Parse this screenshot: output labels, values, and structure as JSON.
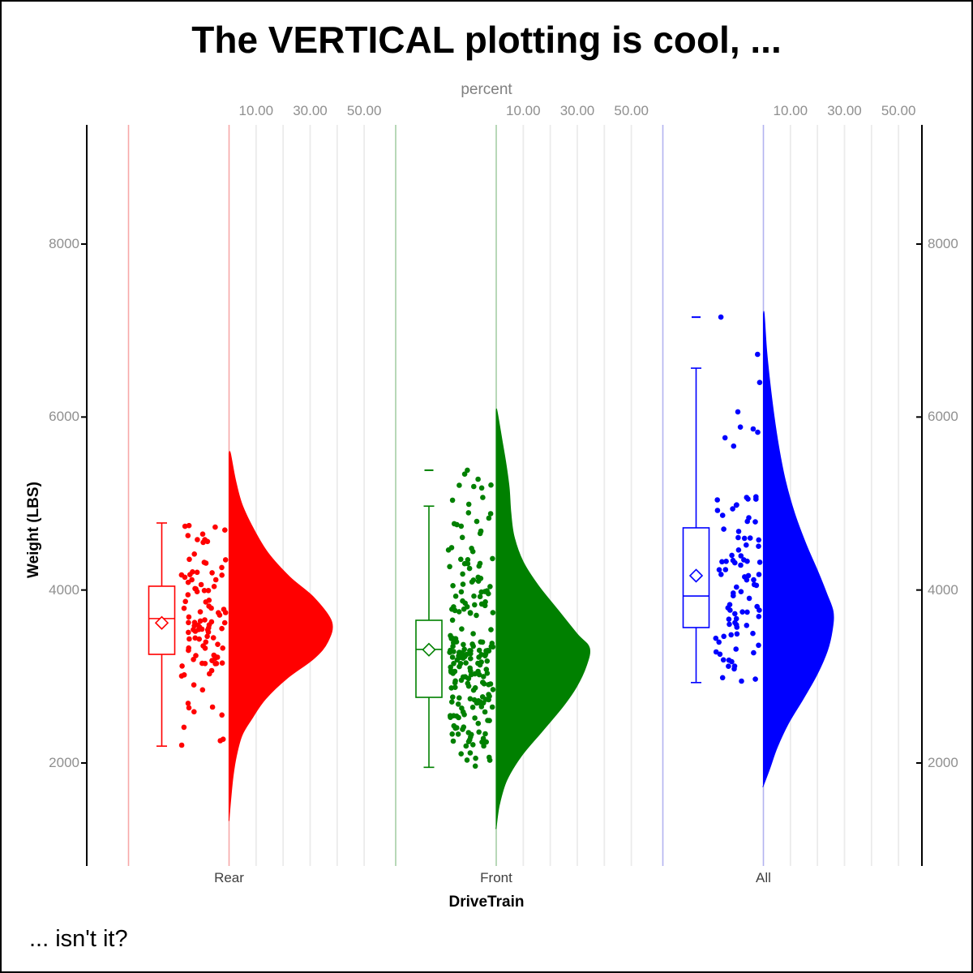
{
  "title": "The VERTICAL plotting is cool, ...",
  "footnote": "... isn't it?",
  "axes": {
    "top": {
      "label": "percent",
      "tick_labels": [
        "10.00",
        "30.00",
        "50.00"
      ],
      "tick_percents": [
        10,
        30,
        50
      ],
      "grid_percents": [
        10,
        20,
        30,
        40,
        50
      ]
    },
    "left": {
      "label": "Weight (LBS)",
      "tick_labels": [
        "2000",
        "4000",
        "6000",
        "8000"
      ],
      "tick_values": [
        2000,
        4000,
        6000,
        8000
      ]
    },
    "right": {
      "tick_labels": [
        "2000",
        "4000",
        "6000",
        "8000"
      ],
      "tick_values": [
        2000,
        4000,
        6000,
        8000
      ]
    },
    "bottom": {
      "label": "DriveTrain",
      "categories": [
        "Rear",
        "Front",
        "All"
      ]
    }
  },
  "chart_data": {
    "type": "raincloud",
    "subtype": "vertical half-violin (density in percent) + box plot with mean diamond + jittered points",
    "title": "The VERTICAL plotting is cool, ...",
    "xlabel": "DriveTrain",
    "x2label": "percent",
    "ylabel": "Weight (LBS)",
    "ylim": [
      810,
      9380
    ],
    "y_ticks": [
      2000,
      4000,
      6000,
      8000
    ],
    "percent_tick_values": [
      10,
      30,
      50
    ],
    "grid": "vertical percent gridlines per category",
    "categories": [
      "Rear",
      "Front",
      "All"
    ],
    "groups": [
      {
        "name": "Rear",
        "color": "#FF0000",
        "pale_line_color": "#F7A8A8",
        "n_points": 105,
        "point_range": [
          2195,
          4790
        ],
        "box": {
          "whisker_low": 2195,
          "q1": 3256,
          "median": 3670,
          "q3": 4044,
          "whisker_high": 4775,
          "mean": 3620,
          "outliers": []
        },
        "extra_points": [
          2206,
          2413
        ],
        "density_value_percent": [
          [
            5580,
            0.5
          ],
          [
            5270,
            2.4
          ],
          [
            4990,
            4.8
          ],
          [
            4710,
            9.0
          ],
          [
            4430,
            14.4
          ],
          [
            4150,
            22.5
          ],
          [
            3910,
            31.5
          ],
          [
            3630,
            38.0
          ],
          [
            3400,
            36.5
          ],
          [
            3210,
            31.5
          ],
          [
            2980,
            21.5
          ],
          [
            2740,
            13.5
          ],
          [
            2510,
            8.4
          ],
          [
            2320,
            4.8
          ],
          [
            2080,
            2.7
          ],
          [
            1850,
            1.5
          ],
          [
            1570,
            0.6
          ],
          [
            1350,
            0
          ]
        ]
      },
      {
        "name": "Front",
        "color": "#008000",
        "pale_line_color": "#A6CFA6",
        "n_points": 215,
        "point_range": [
          1950,
          5400
        ],
        "box": {
          "whisker_low": 1950,
          "q1": 2759,
          "median": 3313,
          "q3": 3650,
          "whisker_high": 4970,
          "mean": 3310,
          "outliers": [
            5385
          ]
        },
        "extra_points": [
          5385,
          5340,
          5180
        ],
        "density_value_percent": [
          [
            6070,
            0.3
          ],
          [
            5740,
            2.1
          ],
          [
            5460,
            3.6
          ],
          [
            5180,
            4.8
          ],
          [
            4900,
            5.4
          ],
          [
            4620,
            6.6
          ],
          [
            4330,
            9.9
          ],
          [
            4050,
            15.6
          ],
          [
            3770,
            22.8
          ],
          [
            3490,
            30.0
          ],
          [
            3330,
            34.5
          ],
          [
            3120,
            33.3
          ],
          [
            2880,
            29.7
          ],
          [
            2650,
            24.6
          ],
          [
            2370,
            17.1
          ],
          [
            2080,
            9.3
          ],
          [
            1800,
            3.9
          ],
          [
            1520,
            1.2
          ],
          [
            1260,
            0
          ]
        ]
      },
      {
        "name": "All",
        "color": "#0000FF",
        "pale_line_color": "#B3B3F0",
        "n_points": 92,
        "point_range": [
          2830,
          7160
        ],
        "box": {
          "whisker_low": 2930,
          "q1": 3566,
          "median": 3931,
          "q3": 4719,
          "whisker_high": 6565,
          "mean": 4166,
          "outliers": [
            7155
          ]
        },
        "extra_points": [
          7155,
          6400
        ],
        "density_value_percent": [
          [
            7190,
            0.3
          ],
          [
            6770,
            1.2
          ],
          [
            6400,
            2.4
          ],
          [
            6020,
            3.9
          ],
          [
            5650,
            5.7
          ],
          [
            5270,
            8.1
          ],
          [
            4900,
            11.4
          ],
          [
            4520,
            15.9
          ],
          [
            4240,
            19.8
          ],
          [
            3960,
            23.4
          ],
          [
            3750,
            25.8
          ],
          [
            3540,
            25.5
          ],
          [
            3300,
            23.7
          ],
          [
            3020,
            19.8
          ],
          [
            2740,
            14.7
          ],
          [
            2460,
            9.3
          ],
          [
            2180,
            5.1
          ],
          [
            1940,
            2.4
          ],
          [
            1740,
            0
          ]
        ]
      }
    ]
  },
  "colors": {
    "gridline": "#EBEBEB",
    "axis_line": "#000000",
    "tick_label": "#8F8F8F",
    "top_axis_label": "#808080"
  }
}
